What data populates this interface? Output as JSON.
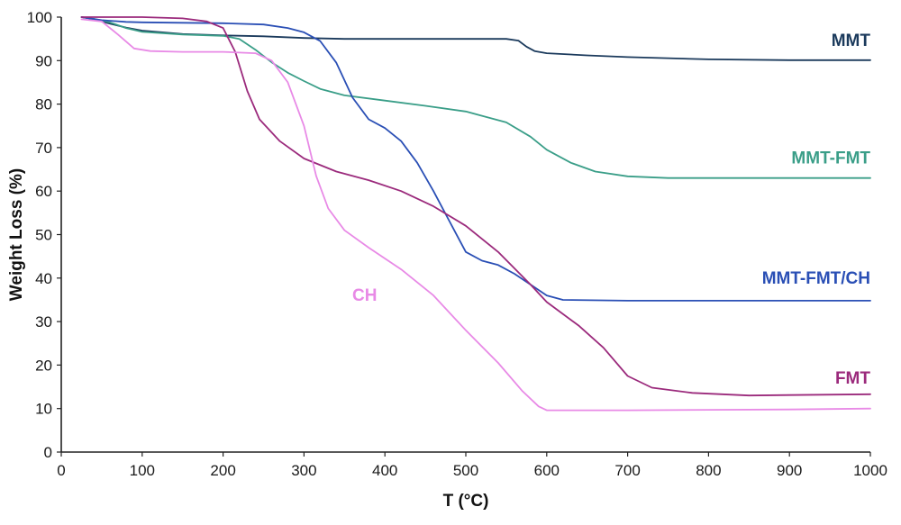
{
  "chart_data": {
    "type": "line",
    "title": "",
    "xlabel": "T (°C)",
    "ylabel": "Weight Loss (%)",
    "xlim": [
      0,
      1000
    ],
    "ylim": [
      0,
      100
    ],
    "x_ticks": [
      0,
      100,
      200,
      300,
      400,
      500,
      600,
      700,
      800,
      900,
      1000
    ],
    "y_ticks": [
      0,
      10,
      20,
      30,
      40,
      50,
      60,
      70,
      80,
      90,
      100
    ],
    "grid": false,
    "legend": "none",
    "series": [
      {
        "name": "MMT",
        "color": "#1b3a5c",
        "points": [
          [
            25,
            100
          ],
          [
            40,
            99.5
          ],
          [
            60,
            98.5
          ],
          [
            80,
            97.6
          ],
          [
            100,
            96.9
          ],
          [
            150,
            96.1
          ],
          [
            200,
            95.8
          ],
          [
            250,
            95.6
          ],
          [
            300,
            95.2
          ],
          [
            350,
            95.0
          ],
          [
            400,
            95.0
          ],
          [
            450,
            95.0
          ],
          [
            500,
            95.0
          ],
          [
            550,
            95.0
          ],
          [
            565,
            94.6
          ],
          [
            575,
            93.2
          ],
          [
            585,
            92.2
          ],
          [
            600,
            91.7
          ],
          [
            650,
            91.2
          ],
          [
            700,
            90.8
          ],
          [
            800,
            90.3
          ],
          [
            900,
            90.1
          ],
          [
            1000,
            90.1
          ]
        ]
      },
      {
        "name": "MMT-FMT",
        "color": "#3a9e88",
        "points": [
          [
            25,
            100
          ],
          [
            40,
            99.6
          ],
          [
            60,
            98.8
          ],
          [
            80,
            97.5
          ],
          [
            100,
            96.6
          ],
          [
            150,
            96.0
          ],
          [
            200,
            95.7
          ],
          [
            220,
            95.0
          ],
          [
            240,
            92.5
          ],
          [
            260,
            89.6
          ],
          [
            280,
            87.2
          ],
          [
            300,
            85.3
          ],
          [
            320,
            83.5
          ],
          [
            350,
            82.0
          ],
          [
            400,
            80.8
          ],
          [
            450,
            79.6
          ],
          [
            500,
            78.3
          ],
          [
            550,
            75.8
          ],
          [
            580,
            72.5
          ],
          [
            600,
            69.5
          ],
          [
            630,
            66.5
          ],
          [
            660,
            64.5
          ],
          [
            700,
            63.4
          ],
          [
            750,
            63.0
          ],
          [
            800,
            63.0
          ],
          [
            900,
            63.0
          ],
          [
            1000,
            63.0
          ]
        ]
      },
      {
        "name": "MMT-FMT/CH",
        "color": "#2a4fb5",
        "points": [
          [
            25,
            100
          ],
          [
            50,
            99.3
          ],
          [
            80,
            98.9
          ],
          [
            100,
            98.8
          ],
          [
            150,
            98.7
          ],
          [
            200,
            98.6
          ],
          [
            250,
            98.3
          ],
          [
            280,
            97.5
          ],
          [
            300,
            96.5
          ],
          [
            320,
            94.5
          ],
          [
            340,
            89.5
          ],
          [
            360,
            81.5
          ],
          [
            380,
            76.5
          ],
          [
            400,
            74.5
          ],
          [
            420,
            71.5
          ],
          [
            440,
            66.5
          ],
          [
            460,
            60.0
          ],
          [
            480,
            53.0
          ],
          [
            500,
            46.0
          ],
          [
            520,
            44.0
          ],
          [
            540,
            43.0
          ],
          [
            560,
            41.0
          ],
          [
            580,
            38.5
          ],
          [
            600,
            36.0
          ],
          [
            620,
            35.0
          ],
          [
            700,
            34.8
          ],
          [
            800,
            34.8
          ],
          [
            900,
            34.8
          ],
          [
            1000,
            34.8
          ]
        ]
      },
      {
        "name": "FMT",
        "color": "#9b2a7c",
        "points": [
          [
            25,
            100
          ],
          [
            50,
            100
          ],
          [
            100,
            100
          ],
          [
            150,
            99.7
          ],
          [
            180,
            99.0
          ],
          [
            200,
            97.5
          ],
          [
            215,
            92.0
          ],
          [
            230,
            83.0
          ],
          [
            245,
            76.5
          ],
          [
            270,
            71.5
          ],
          [
            300,
            67.5
          ],
          [
            340,
            64.5
          ],
          [
            380,
            62.5
          ],
          [
            420,
            60.0
          ],
          [
            460,
            56.5
          ],
          [
            500,
            52.0
          ],
          [
            540,
            46.0
          ],
          [
            580,
            38.5
          ],
          [
            600,
            34.5
          ],
          [
            640,
            29.0
          ],
          [
            670,
            24.0
          ],
          [
            700,
            17.5
          ],
          [
            730,
            14.8
          ],
          [
            780,
            13.6
          ],
          [
            850,
            13.0
          ],
          [
            900,
            13.1
          ],
          [
            1000,
            13.3
          ]
        ]
      },
      {
        "name": "CH",
        "color": "#e88ae6",
        "points": [
          [
            25,
            99.5
          ],
          [
            50,
            99.0
          ],
          [
            70,
            96.0
          ],
          [
            90,
            92.8
          ],
          [
            110,
            92.2
          ],
          [
            150,
            92.0
          ],
          [
            200,
            92.0
          ],
          [
            240,
            91.7
          ],
          [
            260,
            90.0
          ],
          [
            280,
            85.0
          ],
          [
            300,
            75.0
          ],
          [
            315,
            63.5
          ],
          [
            330,
            56.0
          ],
          [
            350,
            51.0
          ],
          [
            380,
            47.0
          ],
          [
            420,
            42.0
          ],
          [
            460,
            36.0
          ],
          [
            500,
            28.0
          ],
          [
            540,
            20.5
          ],
          [
            570,
            14.0
          ],
          [
            590,
            10.5
          ],
          [
            600,
            9.6
          ],
          [
            700,
            9.6
          ],
          [
            800,
            9.7
          ],
          [
            900,
            9.8
          ],
          [
            1000,
            10.0
          ]
        ]
      }
    ],
    "labels": [
      {
        "text": "MMT",
        "x": 1000,
        "y": 90.1
      },
      {
        "text": "MMT-FMT",
        "x": 1000,
        "y": 63.0
      },
      {
        "text": "MMT-FMT/CH",
        "x": 1000,
        "y": 34.8
      },
      {
        "text": "FMT",
        "x": 1000,
        "y": 13.3
      },
      {
        "text": "CH",
        "x": 375,
        "y": 34.8
      }
    ]
  }
}
